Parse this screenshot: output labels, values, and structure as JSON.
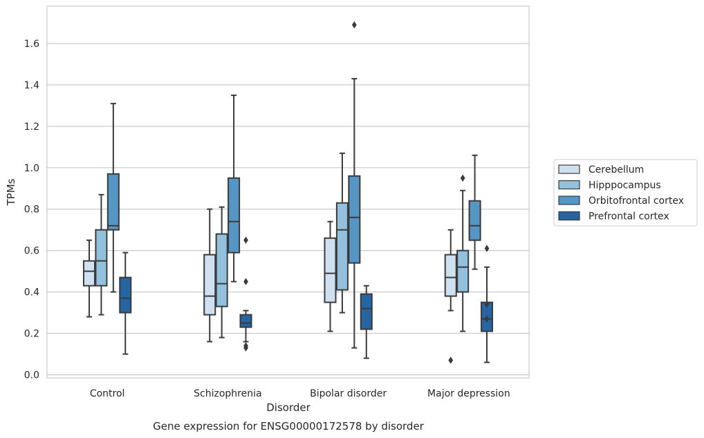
{
  "chart_data": {
    "type": "box",
    "title": "",
    "caption": "Gene expression for ENSG00000172578 by disorder",
    "xlabel": "Disorder",
    "ylabel": "TPMs",
    "ylim": [
      -0.015,
      1.78
    ],
    "yticks": [
      0.0,
      0.2,
      0.4,
      0.6,
      0.8,
      1.0,
      1.2,
      1.4,
      1.6
    ],
    "ytick_labels": [
      "0.0",
      "0.2",
      "0.4",
      "0.6",
      "0.8",
      "1.0",
      "1.2",
      "1.4",
      "1.6"
    ],
    "grid": "horizontal",
    "legend_position": "right",
    "categories": [
      "Control",
      "Schizophrenia",
      "Bipolar disorder",
      "Major depression"
    ],
    "series": [
      {
        "name": "Cerebellum",
        "color": "#cfe1f1",
        "boxes": [
          {
            "whisker_low": 0.28,
            "q1": 0.43,
            "median": 0.5,
            "q3": 0.55,
            "whisker_high": 0.65,
            "outliers": []
          },
          {
            "whisker_low": 0.16,
            "q1": 0.29,
            "median": 0.38,
            "q3": 0.58,
            "whisker_high": 0.8,
            "outliers": []
          },
          {
            "whisker_low": 0.21,
            "q1": 0.35,
            "median": 0.49,
            "q3": 0.66,
            "whisker_high": 0.74,
            "outliers": []
          },
          {
            "whisker_low": 0.31,
            "q1": 0.38,
            "median": 0.47,
            "q3": 0.58,
            "whisker_high": 0.7,
            "outliers": [
              0.07
            ]
          }
        ]
      },
      {
        "name": "Hipppocampus",
        "color": "#93c0dc",
        "boxes": [
          {
            "whisker_low": 0.29,
            "q1": 0.43,
            "median": 0.55,
            "q3": 0.7,
            "whisker_high": 0.87,
            "outliers": []
          },
          {
            "whisker_low": 0.18,
            "q1": 0.33,
            "median": 0.44,
            "q3": 0.68,
            "whisker_high": 0.81,
            "outliers": []
          },
          {
            "whisker_low": 0.3,
            "q1": 0.41,
            "median": 0.7,
            "q3": 0.83,
            "whisker_high": 1.07,
            "outliers": []
          },
          {
            "whisker_low": 0.21,
            "q1": 0.4,
            "median": 0.52,
            "q3": 0.6,
            "whisker_high": 0.89,
            "outliers": [
              0.95
            ]
          }
        ]
      },
      {
        "name": "Orbitofrontal cortex",
        "color": "#5696c5",
        "boxes": [
          {
            "whisker_low": 0.4,
            "q1": 0.7,
            "median": 0.72,
            "q3": 0.97,
            "whisker_high": 1.31,
            "outliers": []
          },
          {
            "whisker_low": 0.45,
            "q1": 0.59,
            "median": 0.74,
            "q3": 0.95,
            "whisker_high": 1.35,
            "outliers": []
          },
          {
            "whisker_low": 0.13,
            "q1": 0.54,
            "median": 0.76,
            "q3": 0.96,
            "whisker_high": 1.43,
            "outliers": [
              1.69
            ]
          },
          {
            "whisker_low": 0.51,
            "q1": 0.65,
            "median": 0.72,
            "q3": 0.84,
            "whisker_high": 1.06,
            "outliers": []
          }
        ]
      },
      {
        "name": "Prefrontal cortex",
        "color": "#2765a2",
        "boxes": [
          {
            "whisker_low": 0.1,
            "q1": 0.3,
            "median": 0.37,
            "q3": 0.47,
            "whisker_high": 0.59,
            "outliers": []
          },
          {
            "whisker_low": 0.16,
            "q1": 0.23,
            "median": 0.25,
            "q3": 0.29,
            "whisker_high": 0.31,
            "outliers": [
              0.65,
              0.45,
              0.14,
              0.13
            ]
          },
          {
            "whisker_low": 0.08,
            "q1": 0.22,
            "median": 0.32,
            "q3": 0.39,
            "whisker_high": 0.43,
            "outliers": []
          },
          {
            "whisker_low": 0.06,
            "q1": 0.21,
            "median": 0.27,
            "q3": 0.35,
            "whisker_high": 0.52,
            "outliers": [
              0.61,
              0.34,
              0.27
            ]
          }
        ]
      }
    ]
  }
}
